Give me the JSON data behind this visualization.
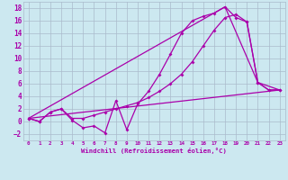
{
  "bg_color": "#cce8f0",
  "grid_color": "#aabbcc",
  "line_color": "#aa00aa",
  "xlim": [
    -0.5,
    23.5
  ],
  "ylim": [
    -3,
    19
  ],
  "xticks": [
    0,
    1,
    2,
    3,
    4,
    5,
    6,
    7,
    8,
    9,
    10,
    11,
    12,
    13,
    14,
    15,
    16,
    17,
    18,
    19,
    20,
    21,
    22,
    23
  ],
  "yticks": [
    -2,
    0,
    2,
    4,
    6,
    8,
    10,
    12,
    14,
    16,
    18
  ],
  "xlabel": "Windchill (Refroidissement éolien,°C)",
  "line1_x": [
    0,
    1,
    2,
    3,
    4,
    5,
    6,
    7,
    8,
    9,
    10,
    11,
    12,
    13,
    14,
    15,
    16,
    17,
    18,
    19,
    20,
    21,
    22,
    23
  ],
  "line1_y": [
    0.5,
    0.0,
    1.5,
    2.0,
    0.2,
    -1.0,
    -0.7,
    -1.8,
    3.3,
    -1.3,
    2.8,
    4.8,
    7.5,
    10.7,
    14.0,
    16.0,
    16.7,
    17.2,
    18.2,
    16.5,
    15.8,
    6.2,
    5.0,
    5.0
  ],
  "line2_x": [
    0,
    1,
    2,
    3,
    4,
    5,
    6,
    7,
    8,
    9,
    10,
    11,
    12,
    13,
    14,
    15,
    16,
    17,
    18,
    19,
    20,
    21,
    22,
    23
  ],
  "line2_y": [
    0.5,
    0.0,
    1.5,
    2.0,
    0.5,
    0.5,
    1.0,
    1.5,
    2.0,
    2.5,
    3.0,
    3.8,
    4.8,
    6.0,
    7.5,
    9.5,
    12.0,
    14.5,
    16.5,
    17.0,
    15.8,
    6.2,
    5.0,
    5.0
  ],
  "line3_x": [
    0,
    23
  ],
  "line3_y": [
    0.5,
    5.0
  ],
  "line4_x": [
    0,
    18,
    21,
    23
  ],
  "line4_y": [
    0.5,
    18.2,
    6.2,
    5.0
  ]
}
